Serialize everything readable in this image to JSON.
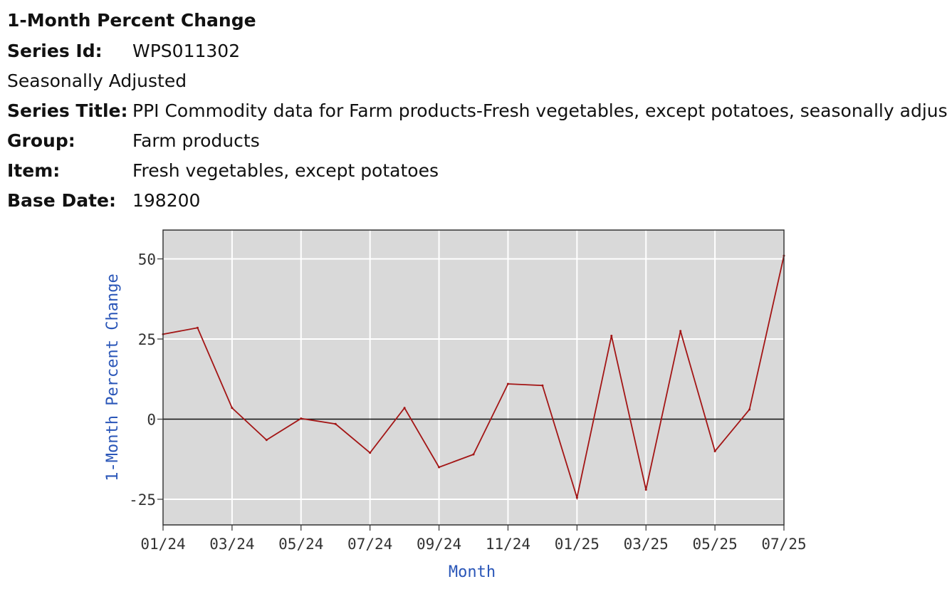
{
  "header": {
    "heading": "1-Month Percent Change",
    "rows": [
      {
        "label": "Series Id:",
        "value": "WPS011302"
      },
      {
        "label": "",
        "value": "Seasonally Adjusted"
      },
      {
        "label": "Series Title:",
        "value": "PPI Commodity data for Farm products-Fresh vegetables, except potatoes, seasonally adjusted"
      },
      {
        "label": "Group:",
        "value": "Farm products"
      },
      {
        "label": "Item:",
        "value": "Fresh vegetables, except potatoes"
      },
      {
        "label": "Base Date:",
        "value": "198200"
      }
    ]
  },
  "chart_data": {
    "type": "line",
    "title": "",
    "xlabel": "Month",
    "ylabel": "1-Month Percent Change",
    "x": [
      "01/24",
      "02/24",
      "03/24",
      "04/24",
      "05/24",
      "06/24",
      "07/24",
      "08/24",
      "09/24",
      "10/24",
      "11/24",
      "12/24",
      "01/25",
      "02/25",
      "03/25",
      "04/25",
      "05/25",
      "06/25",
      "07/25"
    ],
    "x_ticks": [
      "01/24",
      "03/24",
      "05/24",
      "07/24",
      "09/24",
      "11/24",
      "01/25",
      "03/25",
      "05/25",
      "07/25"
    ],
    "y_ticks": [
      50,
      25,
      0,
      -25
    ],
    "ylim": [
      -33,
      59
    ],
    "grid": true,
    "plot_background": "#d9d9d9",
    "series": [
      {
        "color": "#a31515",
        "values": [
          26.5,
          28.5,
          3.5,
          -6.5,
          0.2,
          -1.5,
          -10.5,
          3.5,
          -15,
          -11,
          11,
          10.5,
          -24.5,
          26,
          -22,
          27.5,
          -10,
          3,
          51
        ]
      }
    ],
    "zero_line": true
  }
}
